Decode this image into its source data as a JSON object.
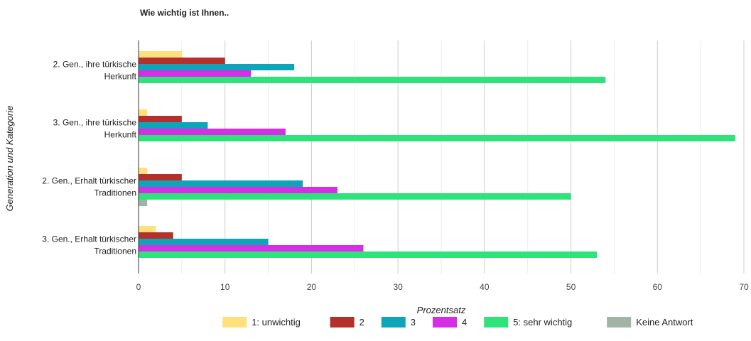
{
  "chart_data": {
    "type": "bar",
    "orientation": "horizontal",
    "title": "Wie wichtig ist Ihnen..",
    "xlabel": "Prozentsatz",
    "ylabel": "Generation und Kategorie",
    "xlim": [
      0,
      70
    ],
    "xticks": [
      0,
      10,
      20,
      30,
      40,
      50,
      60,
      70
    ],
    "grid": true,
    "legend_position": "bottom",
    "categories": [
      [
        "2. Gen., ihre türkische",
        "Herkunft"
      ],
      [
        "3. Gen., ihre türkische",
        "Herkunft"
      ],
      [
        "2. Gen., Erhalt türkischer",
        "Traditionen"
      ],
      [
        "3. Gen., Erhalt türkischer",
        "Traditionen"
      ]
    ],
    "series": [
      {
        "name": "1: unwichtig",
        "color": "#fce17c",
        "values": [
          5,
          1,
          1,
          2
        ]
      },
      {
        "name": "2",
        "color": "#b5302a",
        "values": [
          10,
          5,
          5,
          4
        ]
      },
      {
        "name": "3",
        "color": "#0ea5b9",
        "values": [
          18,
          8,
          19,
          15
        ]
      },
      {
        "name": "4",
        "color": "#d62ee6",
        "values": [
          13,
          17,
          23,
          26
        ]
      },
      {
        "name": "5: sehr wichtig",
        "color": "#2ee37a",
        "values": [
          54,
          69,
          50,
          53
        ]
      },
      {
        "name": "Keine Antwort",
        "color": "#a1b3a7",
        "values": [
          0,
          0,
          1,
          0
        ]
      }
    ]
  }
}
